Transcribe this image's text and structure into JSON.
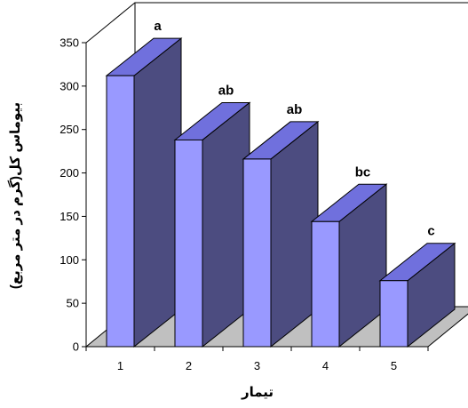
{
  "chart_data": {
    "type": "bar",
    "style": "3d-column",
    "categories": [
      "1",
      "2",
      "3",
      "4",
      "5"
    ],
    "values": [
      312,
      238,
      216,
      144,
      76
    ],
    "data_labels": [
      "a",
      "ab",
      "ab",
      "bc",
      "c"
    ],
    "xlabel": "تیمار",
    "ylabel": "بیوماس کل(گرم در متر مربع)",
    "ylim": [
      0,
      350
    ],
    "yticks": [
      0,
      50,
      100,
      150,
      200,
      250,
      300,
      350
    ],
    "grid": false,
    "legend": "none",
    "colors": {
      "bar_front": "#9999ff",
      "bar_side": "#4c4c80",
      "bar_top": "#7070dd",
      "floor": "#c0c0c0",
      "outline": "#000000"
    }
  }
}
